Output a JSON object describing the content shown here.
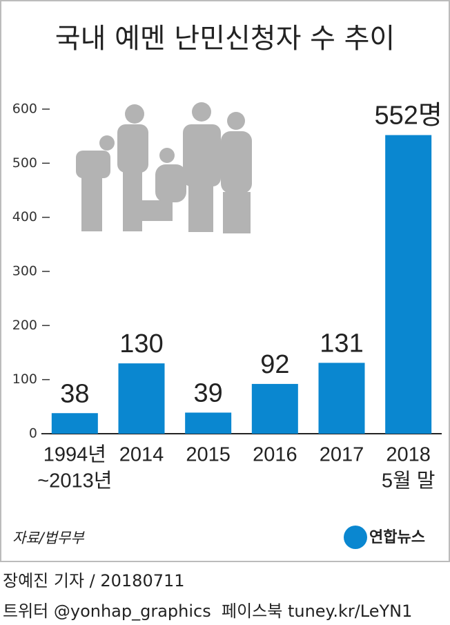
{
  "chart_data": {
    "type": "bar",
    "title": "국내 예멘 난민신청자 수 추이",
    "categories": [
      [
        "1994년",
        "~2013년"
      ],
      "2014",
      "2015",
      "2016",
      "2017",
      [
        "2018",
        "5월 말"
      ]
    ],
    "values": [
      38,
      130,
      39,
      92,
      131,
      552
    ],
    "value_labels": [
      "38",
      "130",
      "39",
      "92",
      "131",
      "552명"
    ],
    "color": "#0a87d0",
    "ylim": [
      0,
      600
    ],
    "yticks": [
      0,
      100,
      200,
      300,
      400,
      500,
      600
    ],
    "source": "자료/법무부",
    "logo": "연합뉴스"
  },
  "footer": {
    "author": "장예진 기자 / 20180711",
    "sns": "트위터 @yonhap_graphics  페이스북 tuney.kr/LeYN1"
  }
}
